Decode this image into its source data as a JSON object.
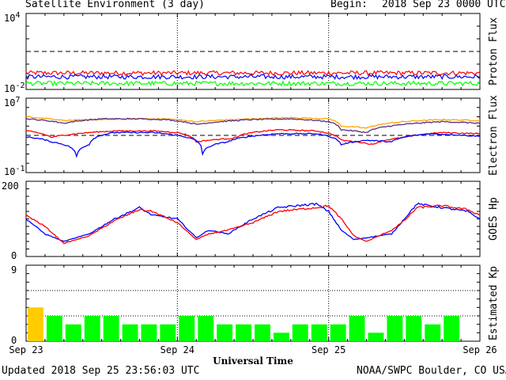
{
  "header": {
    "title": "Satellite Environment (3 day)",
    "begin_label": "Begin:",
    "begin_value": "2018 Sep 23 0000 UTC"
  },
  "footer": {
    "updated": "Updated 2018 Sep 25 23:56:03 UTC",
    "credit": "NOAA/SWPC Boulder, CO USA"
  },
  "colors": {
    "red": "#ff0000",
    "blue": "#0000ff",
    "green": "#00ff00",
    "orange": "#ffa500",
    "purple": "#5a2a8a",
    "kp_green": "#00ff00",
    "kp_yellow": "#ffcc00"
  },
  "chart_data": {
    "type": "multi-panel time series",
    "x": {
      "label": "Universal Time",
      "ticks": [
        "Sep 23",
        "Sep 24",
        "Sep 25",
        "Sep 26"
      ],
      "range_hours": [
        0,
        72
      ]
    },
    "panels": [
      {
        "id": "proton",
        "ylabel": "Proton Flux",
        "scale": "log",
        "ylim_exp": [
          -2,
          4
        ],
        "tick_labels": [
          {
            "base": "10",
            "exp": "4"
          },
          {
            "base": "10",
            "exp": "-2"
          }
        ],
        "threshold": 10,
        "series": [
          {
            "color": "red",
            "level": 0.2
          },
          {
            "color": "blue",
            "level": 0.1
          },
          {
            "color": "green",
            "level": 0.03
          }
        ]
      },
      {
        "id": "electron",
        "ylabel": "Electron Flux",
        "scale": "log",
        "ylim_exp": [
          -1,
          7
        ],
        "tick_labels": [
          {
            "base": "10",
            "exp": "7"
          },
          {
            "base": "10",
            "exp": "-1"
          }
        ],
        "threshold": 1000,
        "series": [
          {
            "color": "orange",
            "points": [
              [
                0,
                100000
              ],
              [
                6,
                40000
              ],
              [
                12,
                50000
              ],
              [
                18,
                60000
              ],
              [
                22,
                60000
              ],
              [
                27,
                30000
              ],
              [
                36,
                60000
              ],
              [
                42,
                80000
              ],
              [
                48,
                60000
              ],
              [
                50,
                10000
              ],
              [
                54,
                6000
              ],
              [
                60,
                30000
              ],
              [
                66,
                50000
              ],
              [
                72,
                40000
              ]
            ]
          },
          {
            "color": "purple",
            "points": [
              [
                0,
                60000
              ],
              [
                6,
                20000
              ],
              [
                12,
                60000
              ],
              [
                18,
                60000
              ],
              [
                22,
                50000
              ],
              [
                27,
                15000
              ],
              [
                36,
                50000
              ],
              [
                42,
                60000
              ],
              [
                48,
                30000
              ],
              [
                50,
                4000
              ],
              [
                54,
                2000
              ],
              [
                60,
                15000
              ],
              [
                66,
                30000
              ],
              [
                72,
                20000
              ]
            ]
          },
          {
            "color": "red",
            "points": [
              [
                0,
                3000
              ],
              [
                4,
                600
              ],
              [
                8,
                1500
              ],
              [
                14,
                3000
              ],
              [
                20,
                3000
              ],
              [
                24,
                2000
              ],
              [
                27,
                200
              ],
              [
                33,
                500
              ],
              [
                40,
                4000
              ],
              [
                46,
                3000
              ],
              [
                50,
                300
              ],
              [
                55,
                100
              ],
              [
                60,
                600
              ],
              [
                66,
                2000
              ],
              [
                72,
                1500
              ]
            ]
          },
          {
            "color": "blue",
            "points": [
              [
                0,
                700
              ],
              [
                4,
                200
              ],
              [
                8,
                5
              ],
              [
                10,
                100
              ],
              [
                14,
                2000
              ],
              [
                20,
                2000
              ],
              [
                24,
                1000
              ],
              [
                28,
                10
              ],
              [
                32,
                200
              ],
              [
                40,
                1500
              ],
              [
                46,
                1500
              ],
              [
                50,
                100
              ],
              [
                54,
                300
              ],
              [
                58,
                200
              ],
              [
                64,
                1500
              ],
              [
                72,
                800
              ]
            ]
          }
        ]
      },
      {
        "id": "hp",
        "ylabel": "GOES Hp",
        "scale": "linear",
        "ylim": [
          0,
          200
        ],
        "tick_labels": [
          "200",
          "0"
        ],
        "series": [
          {
            "color": "blue",
            "points": [
              [
                0,
                100
              ],
              [
                3,
                60
              ],
              [
                6,
                40
              ],
              [
                10,
                60
              ],
              [
                14,
                100
              ],
              [
                18,
                130
              ],
              [
                20,
                110
              ],
              [
                24,
                100
              ],
              [
                27,
                50
              ],
              [
                29,
                70
              ],
              [
                32,
                60
              ],
              [
                36,
                100
              ],
              [
                40,
                130
              ],
              [
                46,
                140
              ],
              [
                48,
                120
              ],
              [
                50,
                70
              ],
              [
                52,
                45
              ],
              [
                54,
                50
              ],
              [
                58,
                60
              ],
              [
                60,
                100
              ],
              [
                62,
                140
              ],
              [
                66,
                130
              ],
              [
                70,
                120
              ],
              [
                72,
                100
              ]
            ]
          },
          {
            "color": "red",
            "points": [
              [
                0,
                110
              ],
              [
                3,
                80
              ],
              [
                6,
                35
              ],
              [
                10,
                55
              ],
              [
                14,
                95
              ],
              [
                18,
                125
              ],
              [
                20,
                120
              ],
              [
                24,
                90
              ],
              [
                27,
                45
              ],
              [
                29,
                60
              ],
              [
                32,
                70
              ],
              [
                36,
                90
              ],
              [
                40,
                120
              ],
              [
                46,
                130
              ],
              [
                48,
                135
              ],
              [
                50,
                100
              ],
              [
                52,
                55
              ],
              [
                54,
                40
              ],
              [
                58,
                70
              ],
              [
                60,
                95
              ],
              [
                62,
                130
              ],
              [
                66,
                135
              ],
              [
                70,
                125
              ],
              [
                72,
                110
              ]
            ]
          }
        ]
      },
      {
        "id": "kp",
        "ylabel": "Estimated Kp",
        "scale": "linear",
        "ylim": [
          0,
          9
        ],
        "tick_labels": [
          "9",
          "0"
        ],
        "values": [
          4,
          3,
          2,
          3,
          3,
          2,
          2,
          2,
          3,
          3,
          2,
          2,
          2,
          1,
          2,
          2,
          2,
          3,
          1,
          3,
          3,
          2,
          3,
          0
        ]
      }
    ]
  }
}
